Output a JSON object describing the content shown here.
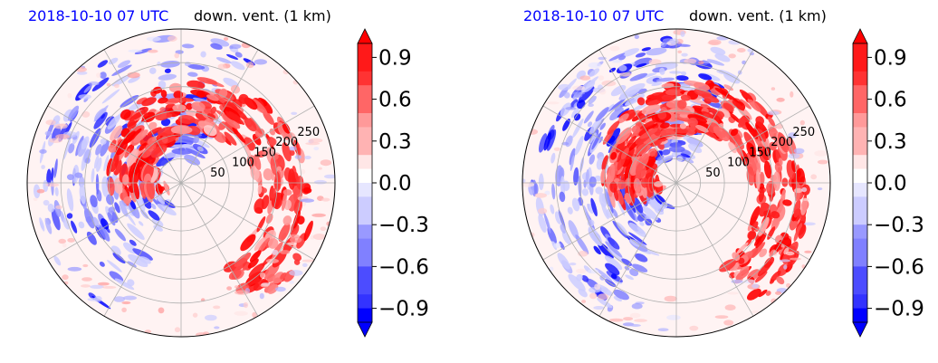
{
  "panels": [
    {
      "id": "left",
      "title_left": "2018-10-10 07 UTC",
      "title_right": "down. vent. (1 km)"
    },
    {
      "id": "right",
      "title_left": "2018-10-10 07 UTC",
      "title_right": "down. vent. (1 km)"
    }
  ],
  "colors": {
    "title_date": "#0000ff",
    "positive": "#ff0000",
    "negative": "#0000ff",
    "neutral": "#ffffff",
    "grid": "#b0b0b0"
  },
  "chart_data": [
    {
      "type": "heatmap",
      "projection": "polar",
      "title": "2018-10-10 07 UTC    down. vent. (1 km)",
      "radial_ticks": [
        "50",
        "100",
        "150",
        "200",
        "250"
      ],
      "radial_tick_values": [
        50,
        100,
        150,
        200,
        250
      ],
      "angular_grid_deg": 30,
      "colorbar": {
        "tick_labels": [
          "0.9",
          "0.6",
          "0.3",
          "0.0",
          "−0.3",
          "−0.6",
          "−0.9"
        ],
        "tick_values": [
          0.9,
          0.6,
          0.3,
          0.0,
          -0.3,
          -0.6,
          -0.9
        ],
        "range": [
          -1.0,
          1.0
        ],
        "extend": "both",
        "colormap": "bwr"
      },
      "grid": true
    },
    {
      "type": "heatmap",
      "projection": "polar",
      "title": "2018-10-10 07 UTC    down. vent. (1 km)",
      "radial_ticks": [
        "50",
        "100",
        "150",
        "200",
        "250"
      ],
      "radial_tick_values": [
        50,
        100,
        150,
        200,
        250
      ],
      "angular_grid_deg": 30,
      "colorbar": {
        "tick_labels": [
          "0.9",
          "0.6",
          "0.3",
          "0.0",
          "−0.3",
          "−0.6",
          "−0.9"
        ],
        "tick_values": [
          0.9,
          0.6,
          0.3,
          0.0,
          -0.3,
          -0.6,
          -0.9
        ],
        "range": [
          -1.0,
          1.0
        ],
        "extend": "both",
        "colormap": "bwr"
      },
      "grid": true
    }
  ]
}
